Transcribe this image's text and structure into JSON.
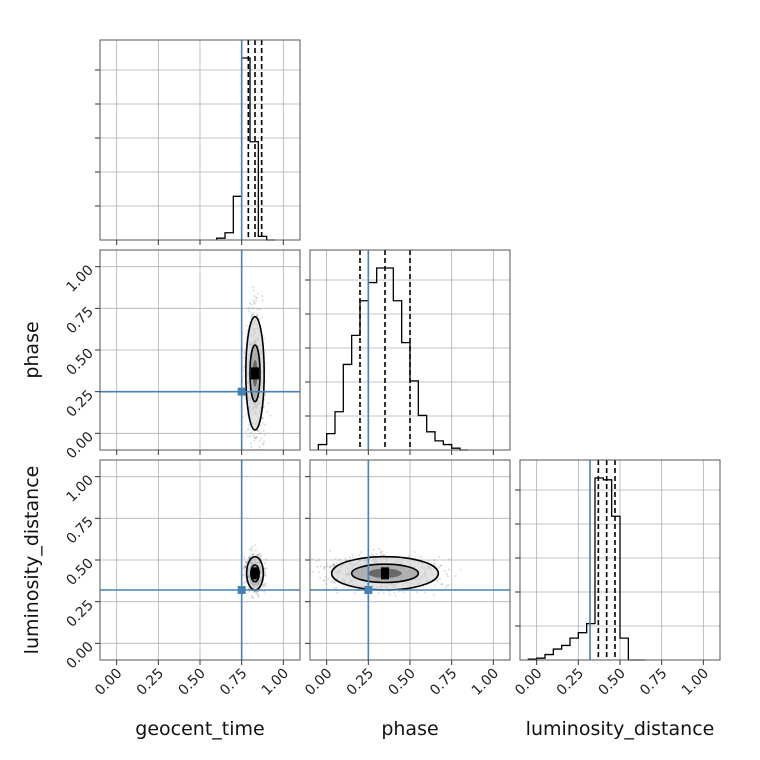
{
  "chart_data": {
    "type": "corner",
    "parameters": [
      "geocent_time",
      "phase",
      "luminosity_distance"
    ],
    "axis_limits": {
      "geocent_time": [
        -0.1,
        1.1
      ],
      "phase": [
        -0.1,
        1.1
      ],
      "luminosity_distance": [
        -0.1,
        1.1
      ]
    },
    "tick_labels": [
      "0.00",
      "0.25",
      "0.50",
      "0.75",
      "1.00"
    ],
    "grid": true,
    "truths": {
      "geocent_time": 0.75,
      "phase": 0.25,
      "luminosity_distance": 0.32
    },
    "quantiles": {
      "geocent_time": [
        0.79,
        0.83,
        0.87
      ],
      "phase": [
        0.2,
        0.35,
        0.5
      ],
      "luminosity_distance": [
        0.37,
        0.42,
        0.47
      ]
    },
    "histograms": {
      "geocent_time": {
        "edges": [
          0.6,
          0.65,
          0.7,
          0.75,
          0.8,
          0.85,
          0.9,
          0.95
        ],
        "counts": [
          0.01,
          0.04,
          0.24,
          1.0,
          0.54,
          0.02,
          0.0
        ]
      },
      "phase": {
        "edges": [
          -0.05,
          0.0,
          0.05,
          0.1,
          0.15,
          0.2,
          0.25,
          0.3,
          0.35,
          0.4,
          0.45,
          0.5,
          0.55,
          0.6,
          0.65,
          0.7,
          0.75,
          0.8,
          0.85
        ],
        "counts": [
          0.03,
          0.09,
          0.21,
          0.47,
          0.63,
          0.82,
          0.92,
          1.0,
          1.0,
          0.82,
          0.59,
          0.38,
          0.19,
          0.1,
          0.05,
          0.03,
          0.01,
          0.0
        ]
      },
      "luminosity_distance": {
        "edges": [
          -0.05,
          0.0,
          0.05,
          0.1,
          0.15,
          0.2,
          0.25,
          0.3,
          0.35,
          0.4,
          0.45,
          0.5,
          0.55,
          0.6,
          0.65
        ],
        "counts": [
          0.005,
          0.01,
          0.03,
          0.06,
          0.08,
          0.12,
          0.15,
          0.2,
          1.0,
          0.99,
          0.79,
          0.12,
          0.0,
          0.0
        ]
      }
    },
    "contours_2d": [
      {
        "x": "geocent_time",
        "y": "phase",
        "center": [
          0.83,
          0.36
        ],
        "levels": [
          {
            "rx": 0.055,
            "ry": 0.34
          },
          {
            "rx": 0.03,
            "ry": 0.17
          },
          {
            "rx": 0.015,
            "ry": 0.08
          }
        ]
      },
      {
        "x": "geocent_time",
        "y": "luminosity_distance",
        "center": [
          0.83,
          0.42
        ],
        "levels": [
          {
            "rx": 0.05,
            "ry": 0.1
          },
          {
            "rx": 0.025,
            "ry": 0.05
          },
          {
            "rx": 0.012,
            "ry": 0.025
          }
        ]
      },
      {
        "x": "phase",
        "y": "luminosity_distance",
        "center": [
          0.35,
          0.42
        ],
        "levels": [
          {
            "rx": 0.32,
            "ry": 0.1
          },
          {
            "rx": 0.2,
            "ry": 0.055
          },
          {
            "rx": 0.1,
            "ry": 0.028
          }
        ]
      }
    ],
    "colors": {
      "truth": "#4682b4",
      "hist": "#000000",
      "quantile": "#000000",
      "grid": "#b0b0b0",
      "points": "#000000"
    }
  }
}
